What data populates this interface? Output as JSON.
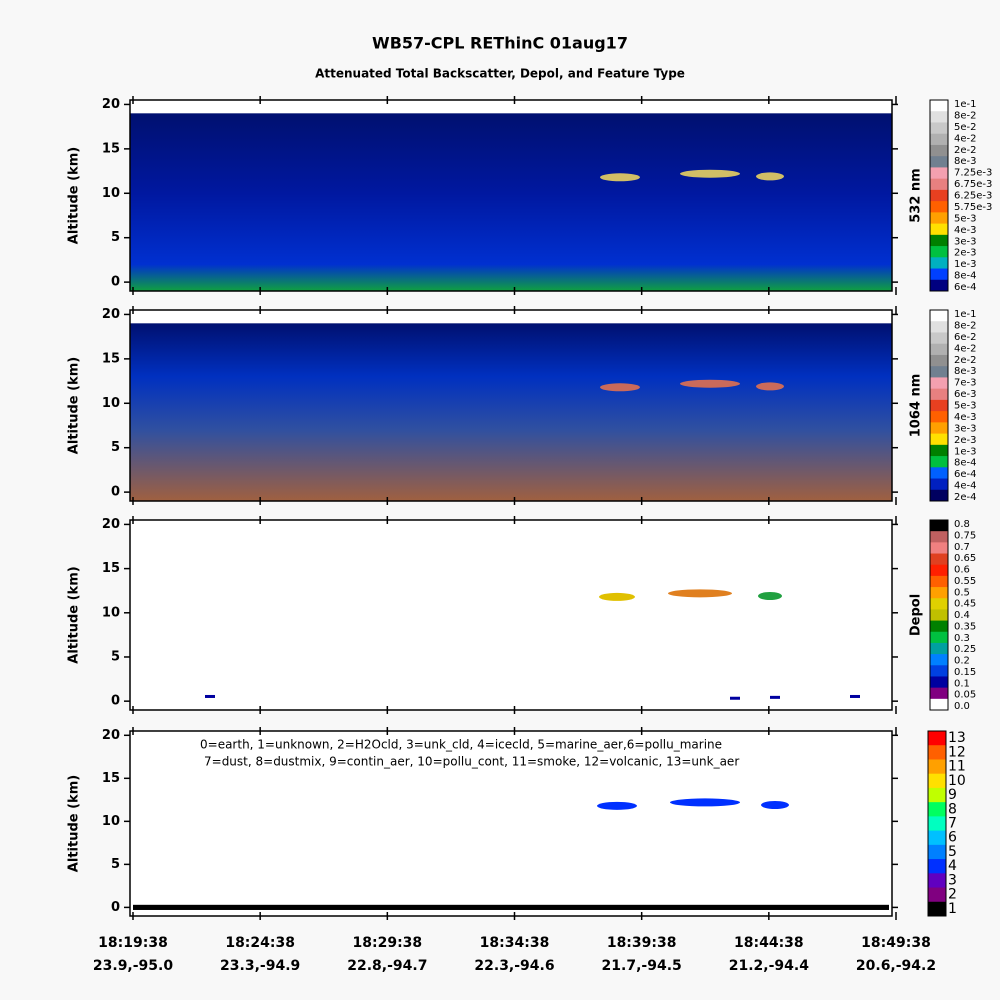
{
  "title": "WB57-CPL REThinC 01aug17",
  "subtitle": "Attenuated Total Backscatter, Depol, and Feature Type",
  "panels": [
    {
      "kind": "backscatter",
      "ylabel": "Altitude (km)",
      "ylim": [
        -1,
        20.5
      ],
      "yticks": [
        0,
        5,
        10,
        15,
        20
      ],
      "colorbar_label": "532 nm",
      "colorbar_ticks": [
        "1e-1",
        "8e-2",
        "5e-2",
        "4e-2",
        "2e-2",
        "8e-3",
        "7.25e-3",
        "6.75e-3",
        "6.25e-3",
        "5.75e-3",
        "5e-3",
        "4e-3",
        "3e-3",
        "2e-3",
        "1e-3",
        "8e-4",
        "6e-4"
      ],
      "colorbar_colors": [
        "#ffffff",
        "#e0e0e0",
        "#c8c8c8",
        "#b0b0b0",
        "#909090",
        "#708090",
        "#f4a0b0",
        "#e88080",
        "#e84020",
        "#ff6000",
        "#ffa000",
        "#ffe000",
        "#008000",
        "#00c040",
        "#00b0c0",
        "#0040ff",
        "#000080"
      ]
    },
    {
      "kind": "backscatter",
      "ylabel": "Altitude (km)",
      "ylim": [
        -1,
        20.5
      ],
      "yticks": [
        0,
        5,
        10,
        15,
        20
      ],
      "colorbar_label": "1064 nm",
      "colorbar_ticks": [
        "1e-1",
        "8e-2",
        "6e-2",
        "4e-2",
        "2e-2",
        "8e-3",
        "7e-3",
        "6e-3",
        "5e-3",
        "4e-3",
        "3e-3",
        "2e-3",
        "1e-3",
        "8e-4",
        "6e-4",
        "4e-4",
        "2e-4"
      ],
      "colorbar_colors": [
        "#ffffff",
        "#e0e0e0",
        "#c8c8c8",
        "#b0b0b0",
        "#909090",
        "#708090",
        "#f4a0b0",
        "#e88080",
        "#e84020",
        "#ff6000",
        "#ffa000",
        "#ffe000",
        "#008000",
        "#00c040",
        "#0060ff",
        "#0020c0",
        "#000060"
      ]
    },
    {
      "kind": "depol",
      "ylabel": "Altitude (km)",
      "ylim": [
        -1,
        20.5
      ],
      "yticks": [
        0,
        5,
        10,
        15,
        20
      ],
      "colorbar_label": "Depol",
      "colorbar_ticks": [
        "0.8",
        "0.75",
        "0.7",
        "0.65",
        "0.6",
        "0.55",
        "0.5",
        "0.45",
        "0.4",
        "0.35",
        "0.3",
        "0.25",
        "0.2",
        "0.15",
        "0.1",
        "0.05",
        "0.0"
      ],
      "colorbar_colors": [
        "#000000",
        "#c06060",
        "#f08080",
        "#e04020",
        "#ff2000",
        "#ff6000",
        "#ffa000",
        "#e0d000",
        "#c0c000",
        "#008000",
        "#00c040",
        "#00a0a0",
        "#0080ff",
        "#0040e0",
        "#0000a0",
        "#800080",
        "#ffffff"
      ]
    },
    {
      "kind": "feature",
      "ylabel": "Altitude (km)",
      "ylim": [
        -1,
        20.5
      ],
      "yticks": [
        0,
        5,
        10,
        15,
        20
      ],
      "colorbar_ticks": [
        13,
        12,
        11,
        10,
        9,
        8,
        7,
        6,
        5,
        4,
        3,
        2,
        1
      ],
      "colorbar_colors": [
        "#ff0000",
        "#ff6000",
        "#ffa000",
        "#ffe000",
        "#c0ff00",
        "#00ff60",
        "#00ffc0",
        "#00c0ff",
        "#0080ff",
        "#0030ff",
        "#6000c0",
        "#800080",
        "#000000"
      ],
      "legend_lines": [
        "0=earth, 1=unknown, 2=H2Ocld, 3=unk_cld, 4=icecld, 5=marine_aer,6=pollu_marine",
        "7=dust, 8=dustmix, 9=contin_aer, 10=pollu_cont, 11=smoke, 12=volcanic, 13=unk_aer"
      ]
    }
  ],
  "xticks": [
    {
      "time": "18:19:38",
      "location": "23.9,-95.0"
    },
    {
      "time": "18:24:38",
      "location": "23.3,-94.9"
    },
    {
      "time": "18:29:38",
      "location": "22.8,-94.7"
    },
    {
      "time": "18:34:38",
      "location": "22.3,-94.6"
    },
    {
      "time": "18:39:38",
      "location": "21.7,-94.5"
    },
    {
      "time": "18:44:38",
      "location": "21.2,-94.4"
    },
    {
      "time": "18:49:38",
      "location": "20.6,-94.2"
    }
  ]
}
